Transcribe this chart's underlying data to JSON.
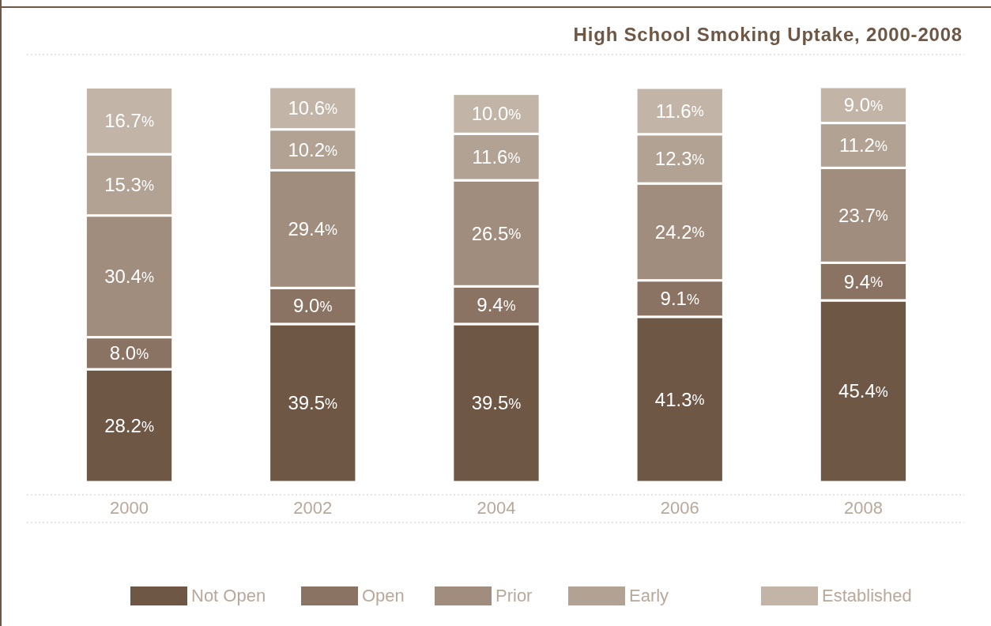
{
  "chart_data": {
    "type": "bar",
    "title": "High School Smoking Uptake, 2000-2008",
    "stacked": true,
    "legend": "bottom",
    "categories": [
      "2000",
      "2002",
      "2004",
      "2006",
      "2008"
    ],
    "series": [
      {
        "name": "Not Open",
        "color": "#6f5745",
        "values": [
          28.2,
          39.5,
          39.5,
          41.3,
          45.4
        ],
        "value_labels": [
          "28.2%",
          "39.5%",
          "39.5%",
          "41.3%",
          "45.4%"
        ]
      },
      {
        "name": "Open",
        "color": "#8a7362",
        "values": [
          8.0,
          9.0,
          9.4,
          9.1,
          9.4
        ],
        "value_labels": [
          "8.0%",
          "9.0%",
          "9.4%",
          "9.1%",
          "9.4%"
        ]
      },
      {
        "name": "Prior",
        "color": "#a08d7e",
        "values": [
          30.4,
          29.4,
          26.5,
          24.2,
          23.7
        ],
        "value_labels": [
          "30.4%",
          "29.4%",
          "26.5%",
          "24.2%",
          "23.7%"
        ]
      },
      {
        "name": "Early",
        "color": "#b2a294",
        "values": [
          15.3,
          10.2,
          11.6,
          12.3,
          11.2
        ],
        "value_labels": [
          "15.3%",
          "10.2%",
          "11.6%",
          "12.3%",
          "11.2%"
        ]
      },
      {
        "name": "Established",
        "color": "#c2b5a8",
        "values": [
          16.7,
          10.6,
          10.0,
          11.6,
          9.0
        ],
        "value_labels": [
          "16.7%",
          "10.6%",
          "10.0%",
          "11.6%",
          "9.0%"
        ]
      }
    ]
  }
}
